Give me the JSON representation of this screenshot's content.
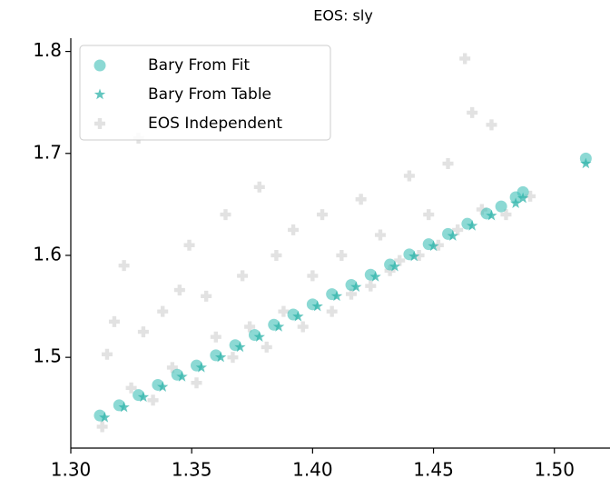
{
  "chart_data": {
    "type": "scatter",
    "title": "EOS: sly",
    "xlim": [
      1.3,
      1.523
    ],
    "ylim": [
      1.411,
      1.813
    ],
    "xticks": [
      {
        "value": 1.3,
        "label": "1.30"
      },
      1.35,
      {
        "value": 1.4,
        "label": "1.40"
      },
      1.45,
      {
        "value": 1.5,
        "label": "1.50"
      }
    ],
    "yticks": [
      1.5,
      1.6,
      1.7,
      1.8
    ],
    "legend": "upper left",
    "series": [
      {
        "name": "Bary From Fit",
        "color": "#40bfb8",
        "marker": "circle",
        "x": [
          1.312,
          1.32,
          1.328,
          1.336,
          1.344,
          1.352,
          1.36,
          1.368,
          1.376,
          1.384,
          1.392,
          1.4,
          1.408,
          1.416,
          1.424,
          1.432,
          1.44,
          1.448,
          1.456,
          1.464,
          1.472,
          1.478,
          1.484,
          1.487,
          1.513
        ],
        "values": [
          1.443,
          1.453,
          1.463,
          1.473,
          1.483,
          1.492,
          1.502,
          1.512,
          1.522,
          1.532,
          1.542,
          1.552,
          1.562,
          1.571,
          1.581,
          1.591,
          1.601,
          1.611,
          1.621,
          1.631,
          1.641,
          1.648,
          1.657,
          1.662,
          1.695
        ]
      },
      {
        "name": "Bary From Table",
        "color": "#2fb3aa",
        "marker": "star",
        "x": [
          1.314,
          1.322,
          1.33,
          1.338,
          1.346,
          1.354,
          1.362,
          1.37,
          1.378,
          1.386,
          1.394,
          1.402,
          1.41,
          1.418,
          1.426,
          1.434,
          1.442,
          1.45,
          1.458,
          1.466,
          1.474,
          1.484,
          1.487,
          1.513
        ],
        "values": [
          1.441,
          1.451,
          1.461,
          1.471,
          1.481,
          1.49,
          1.5,
          1.51,
          1.52,
          1.53,
          1.54,
          1.55,
          1.56,
          1.569,
          1.579,
          1.589,
          1.599,
          1.609,
          1.619,
          1.629,
          1.639,
          1.651,
          1.656,
          1.69
        ]
      },
      {
        "name": "EOS Independent",
        "color": "#8c8c8c",
        "marker": "plus",
        "x": [
          1.313,
          1.315,
          1.318,
          1.322,
          1.325,
          1.328,
          1.33,
          1.334,
          1.338,
          1.342,
          1.345,
          1.349,
          1.352,
          1.356,
          1.36,
          1.364,
          1.367,
          1.371,
          1.374,
          1.378,
          1.381,
          1.385,
          1.388,
          1.392,
          1.396,
          1.4,
          1.404,
          1.408,
          1.412,
          1.416,
          1.42,
          1.424,
          1.428,
          1.432,
          1.436,
          1.44,
          1.444,
          1.448,
          1.452,
          1.456,
          1.46,
          1.463,
          1.466,
          1.47,
          1.474,
          1.48,
          1.49
        ],
        "values": [
          1.432,
          1.503,
          1.535,
          1.59,
          1.47,
          1.715,
          1.525,
          1.458,
          1.545,
          1.49,
          1.566,
          1.61,
          1.475,
          1.56,
          1.52,
          1.64,
          1.5,
          1.58,
          1.53,
          1.667,
          1.51,
          1.6,
          1.545,
          1.625,
          1.53,
          1.58,
          1.64,
          1.545,
          1.6,
          1.562,
          1.655,
          1.57,
          1.62,
          1.585,
          1.595,
          1.678,
          1.6,
          1.64,
          1.61,
          1.69,
          1.625,
          1.793,
          1.74,
          1.645,
          1.728,
          1.64,
          1.658
        ]
      }
    ]
  }
}
